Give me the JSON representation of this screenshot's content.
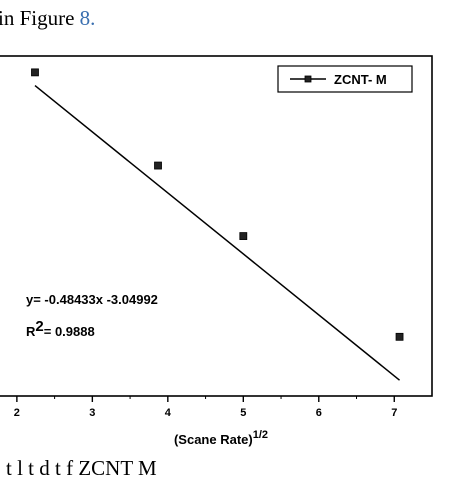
{
  "page": {
    "top_text": "in Figure ",
    "top_ref": "8.",
    "bottom_text": "t          l        t d    t  f   ZCNT M"
  },
  "chart_data": {
    "type": "scatter",
    "xlabel": "(Scane Rate)",
    "xlabel_sup": "1/2",
    "ylabel": "",
    "xlim": [
      1.75,
      7.5
    ],
    "ylim": [
      -6.6,
      -3.9
    ],
    "x_ticks": [
      "2",
      "3",
      "4",
      "5",
      "6",
      "7"
    ],
    "series": [
      {
        "name": "ZCNT- M",
        "marker": "square",
        "color": "#000000",
        "points": [
          {
            "x": 2.24,
            "y": -4.03
          },
          {
            "x": 3.87,
            "y": -4.77
          },
          {
            "x": 5.0,
            "y": -5.33
          },
          {
            "x": 7.07,
            "y": -6.13
          }
        ]
      }
    ],
    "fit": {
      "slope": -0.48433,
      "intercept": -3.04992,
      "x_range": [
        2.24,
        7.07
      ]
    },
    "annotations": {
      "equation": "y= -0.48433x -3.04992",
      "r2_prefix": "R",
      "r2_sup": "2",
      "r2_value": "= 0.9888"
    },
    "legend": {
      "position": "top-right"
    },
    "grid": false
  }
}
